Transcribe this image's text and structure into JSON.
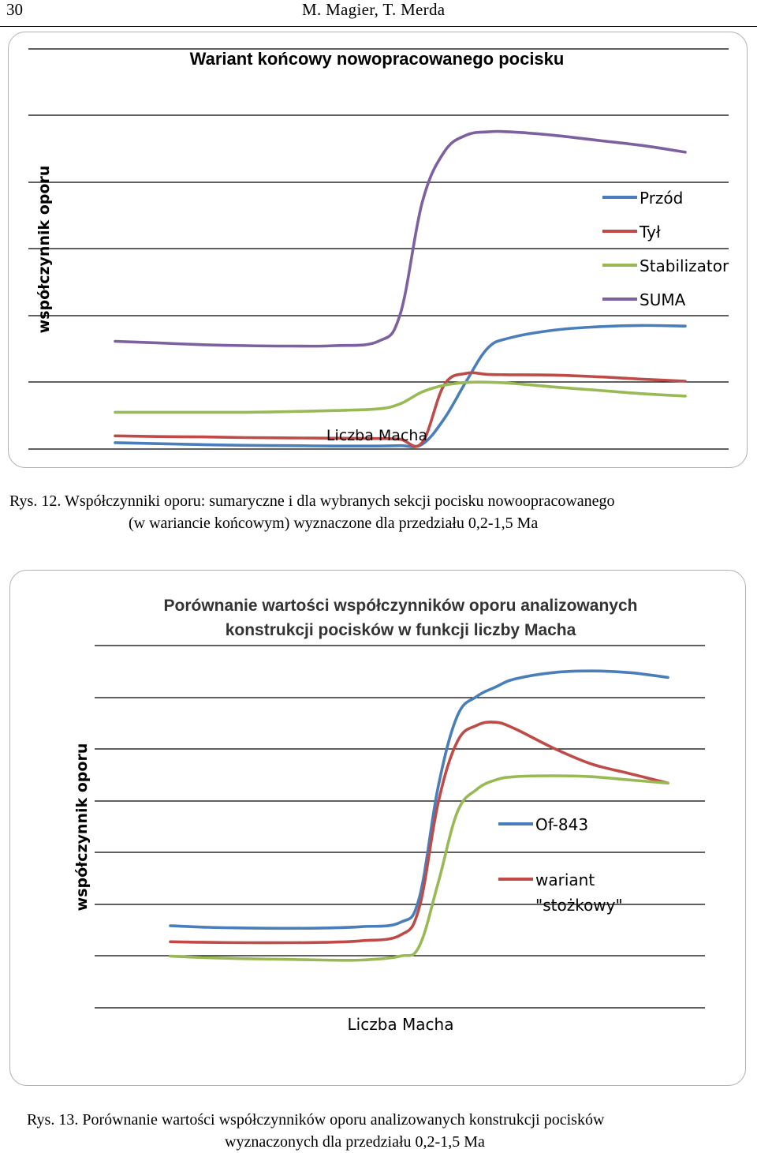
{
  "header": {
    "page_number": "30",
    "authors": "M. Magier, T. Merda"
  },
  "figure12": {
    "caption_line1": "Rys. 12. Współczynniki oporu: sumaryczne i dla wybranych sekcji pocisku nowoopracowanego",
    "caption_line2": "(w wariancie końcowym) wyznaczone dla przedziału 0,2-1,5 Ma"
  },
  "figure13": {
    "caption_line1": "Rys. 13. Porównanie wartości współczynników oporu analizowanych konstrukcji pocisków",
    "caption_line2": "wyznaczonych dla przedziału 0,2-1,5 Ma"
  },
  "chart_data": [
    {
      "type": "line",
      "title": "Wariant końcowy nowopracowanego pocisku",
      "xlabel": "Liczba Macha",
      "ylabel": "współczynnik oporu",
      "x": [
        0.2,
        0.3,
        0.4,
        0.5,
        0.6,
        0.7,
        0.8,
        0.85,
        0.9,
        0.95,
        1.0,
        1.05,
        1.1,
        1.2,
        1.3,
        1.4,
        1.5
      ],
      "ylim": [
        0,
        1
      ],
      "grid": true,
      "legend": "right",
      "series": [
        {
          "name": "Przód",
          "color": "#4a7ebb",
          "values": [
            0.04,
            0.037,
            0.034,
            0.032,
            0.031,
            0.03,
            0.03,
            0.031,
            0.035,
            0.11,
            0.22,
            0.32,
            0.35,
            0.373,
            0.383,
            0.387,
            0.385
          ]
        },
        {
          "name": "Tył",
          "color": "#be4b48",
          "values": [
            0.06,
            0.058,
            0.057,
            0.055,
            0.054,
            0.053,
            0.052,
            0.05,
            0.04,
            0.21,
            0.245,
            0.242,
            0.241,
            0.24,
            0.235,
            0.228,
            0.222
          ]
        },
        {
          "name": "Stabilizator",
          "color": "#98b954",
          "values": [
            0.13,
            0.13,
            0.13,
            0.13,
            0.132,
            0.135,
            0.14,
            0.155,
            0.19,
            0.21,
            0.218,
            0.219,
            0.216,
            0.205,
            0.195,
            0.185,
            0.178
          ]
        },
        {
          "name": "SUMA",
          "color": "#7d60a0",
          "values": [
            0.34,
            0.335,
            0.33,
            0.327,
            0.326,
            0.327,
            0.34,
            0.42,
            0.75,
            0.9,
            0.95,
            0.96,
            0.96,
            0.95,
            0.935,
            0.92,
            0.9
          ]
        }
      ]
    },
    {
      "type": "line",
      "title": "Porównanie wartości współczynników oporu analizowanych konstrukcji pocisków w funkcji liczby Macha",
      "xlabel": "Liczba Macha",
      "ylabel": "współczynnik oporu",
      "x": [
        0.2,
        0.3,
        0.4,
        0.5,
        0.6,
        0.7,
        0.8,
        0.85,
        0.9,
        0.95,
        1.0,
        1.05,
        1.1,
        1.2,
        1.3,
        1.4,
        1.5
      ],
      "ylim": [
        0,
        1
      ],
      "grid": true,
      "legend": "right",
      "series": [
        {
          "name": "Of-843",
          "color": "#4a7ebb",
          "values": [
            0.165,
            0.16,
            0.158,
            0.157,
            0.158,
            0.162,
            0.175,
            0.25,
            0.6,
            0.82,
            0.88,
            0.91,
            0.935,
            0.955,
            0.96,
            0.955,
            0.94
          ]
        },
        {
          "name": "wariant \"stożkowy\"",
          "color": "#be4b48",
          "values": [
            0.115,
            0.113,
            0.112,
            0.112,
            0.113,
            0.118,
            0.135,
            0.22,
            0.55,
            0.74,
            0.79,
            0.8,
            0.78,
            0.72,
            0.67,
            0.64,
            0.61
          ]
        },
        {
          "name": "",
          "color": "#98b954",
          "values": [
            0.07,
            0.065,
            0.062,
            0.06,
            0.058,
            0.058,
            0.07,
            0.1,
            0.3,
            0.52,
            0.59,
            0.62,
            0.63,
            0.633,
            0.63,
            0.62,
            0.61
          ]
        }
      ]
    }
  ]
}
